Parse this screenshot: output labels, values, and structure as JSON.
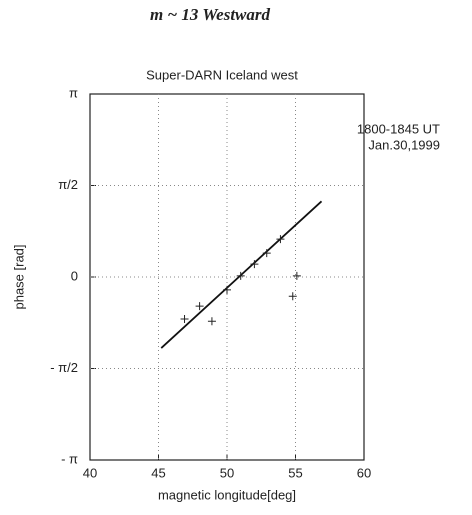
{
  "chart_data": {
    "type": "scatter",
    "title": "Super-DARN  Iceland west",
    "annotations": [
      "m ~ 13   Westward",
      "1800-1845 UT",
      "Jan.30,1999"
    ],
    "x_label": "magnetic longitude[deg]",
    "y_label": "phase [rad]",
    "x": [
      46.9,
      48.0,
      48.9,
      50.0,
      51.0,
      52.0,
      52.9,
      53.9,
      55.1,
      54.8
    ],
    "values": [
      -0.72,
      -0.5,
      -0.76,
      -0.22,
      0.02,
      0.22,
      0.41,
      0.65,
      0.02,
      -0.33
    ],
    "color": "#222222",
    "fit_line": {
      "x": [
        45.2,
        56.9
      ],
      "values": [
        -1.22,
        1.3
      ]
    },
    "xlim": [
      40,
      60
    ],
    "xticks": [
      40,
      45,
      50,
      55,
      60
    ],
    "ylim": [
      -3.1416,
      3.1416
    ],
    "yticks": [
      {
        "value": -3.1416,
        "label": "- π"
      },
      {
        "value": -1.5708,
        "label": "- π/2"
      },
      0,
      {
        "value": 1.5708,
        "label": "π/2"
      },
      {
        "value": 3.1416,
        "label": "π"
      }
    ],
    "grid": true
  }
}
